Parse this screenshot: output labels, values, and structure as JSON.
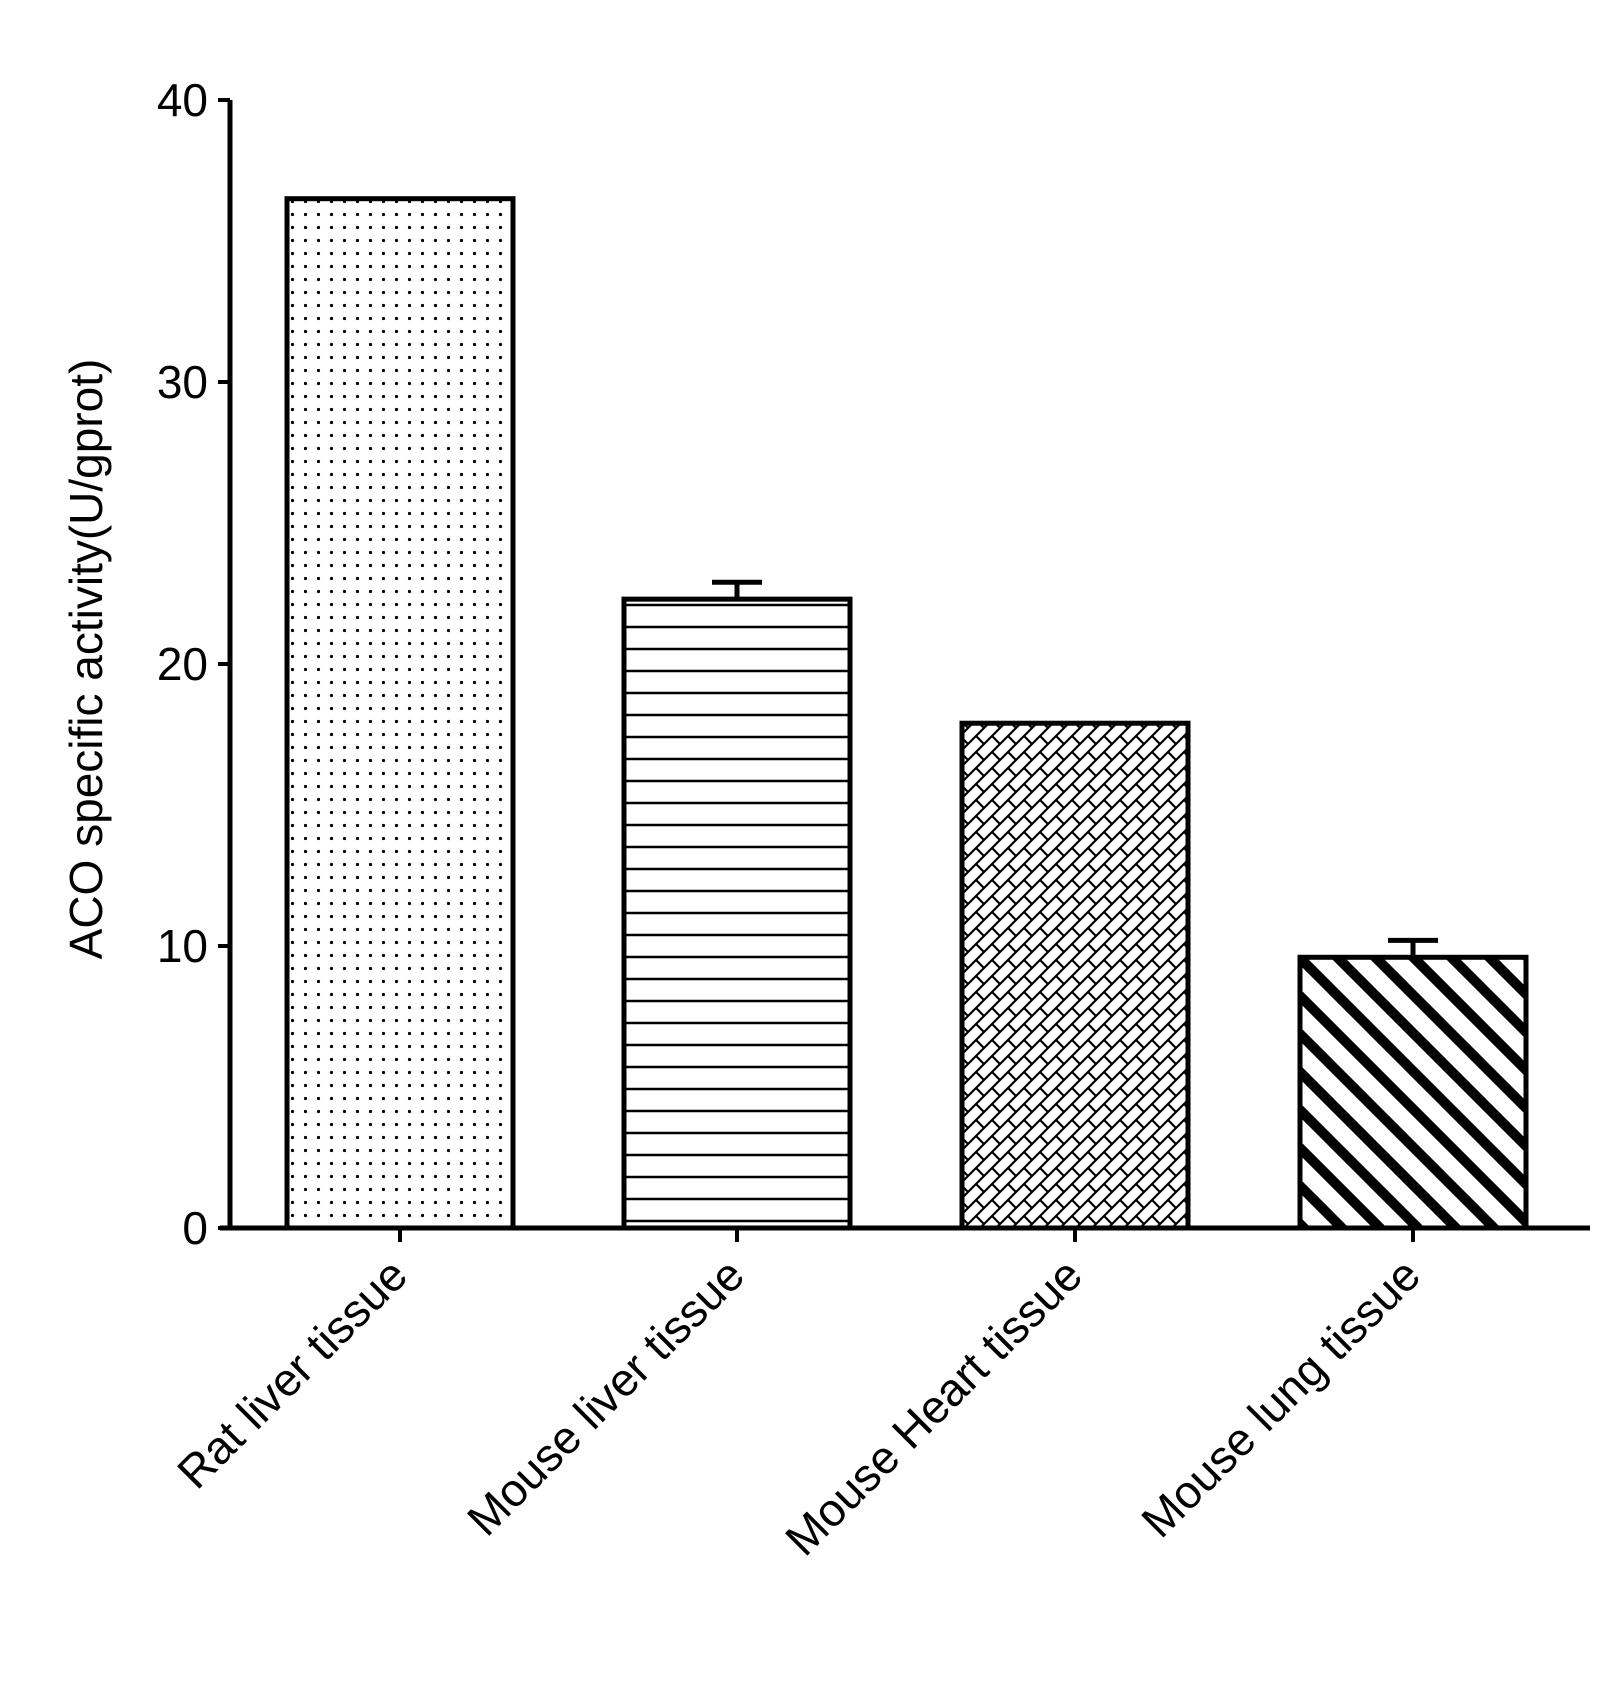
{
  "chart_data": {
    "type": "bar",
    "categories": [
      "Rat liver tissue",
      "Mouse liver tissue",
      "Mouse Heart tissue",
      "Mouse lung tissue"
    ],
    "values": [
      36.5,
      22.3,
      17.9,
      9.6
    ],
    "errors": [
      0,
      0.6,
      0,
      0.6
    ],
    "patterns": [
      "dots",
      "horizontal-lines",
      "crosshatch",
      "diagonal-stripes"
    ],
    "title": "",
    "xlabel": "",
    "ylabel": "ACO specific activity(U/gprot)",
    "ylim": [
      0,
      40
    ],
    "yticks": [
      "0",
      "10",
      "20",
      "30",
      "40"
    ],
    "grid": false,
    "legend": "none",
    "colors": {
      "stroke": "#000000",
      "fill": "#ffffff"
    }
  }
}
